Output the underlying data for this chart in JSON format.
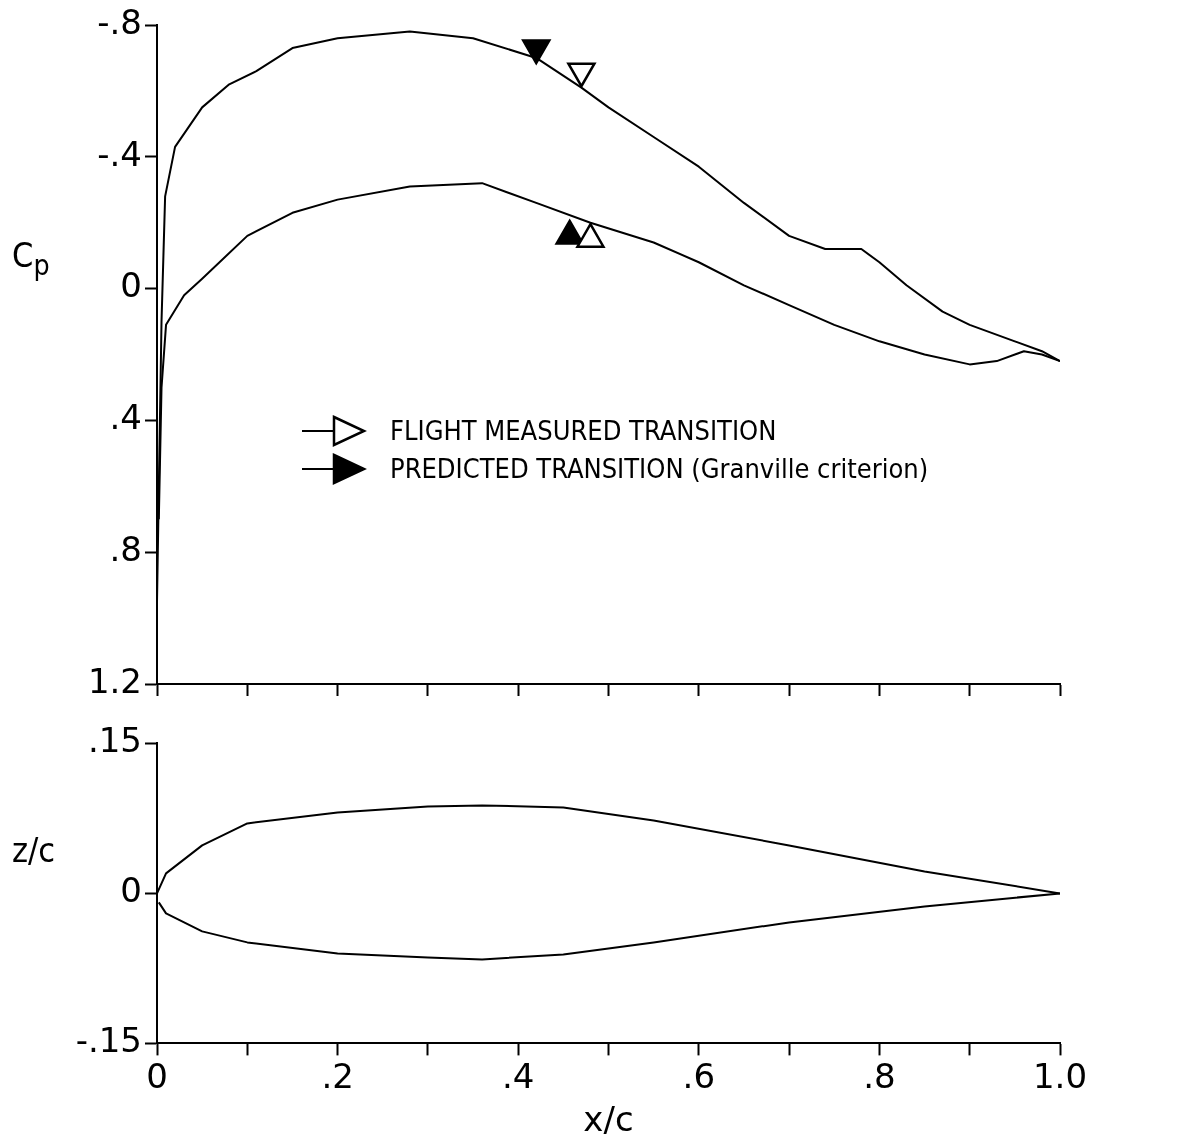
{
  "chart_data": [
    {
      "type": "line",
      "ylabel": "C$_{p}$",
      "xlim": [
        0,
        1
      ],
      "xticks": [
        {
          "value": 0,
          "label": null
        },
        {
          "value": 0.1,
          "label": null
        },
        {
          "value": 0.2,
          "label": null
        },
        {
          "value": 0.3,
          "label": null
        },
        {
          "value": 0.4,
          "label": null
        },
        {
          "value": 0.5,
          "label": null
        },
        {
          "value": 0.6,
          "label": null
        },
        {
          "value": 0.7,
          "label": null
        },
        {
          "value": 0.8,
          "label": null
        },
        {
          "value": 0.9,
          "label": null
        },
        {
          "value": 1,
          "label": null
        }
      ],
      "ylim": [
        1.2,
        -0.8
      ],
      "yticks": [
        {
          "value": -0.8,
          "label": "-.8"
        },
        {
          "value": -0.4,
          "label": "-.4"
        },
        0,
        {
          "value": 0.4,
          "label": ".4"
        },
        {
          "value": 0.8,
          "label": ".8"
        },
        {
          "value": 1.2,
          "label": "1.2"
        }
      ],
      "tick_labels": "y",
      "grid": false,
      "legend": "right",
      "marker": "none",
      "line_style": "solid",
      "series": [
        {
          "color": "#000000",
          "x": [
            0,
            0.005,
            0.009,
            0.02,
            0.05,
            0.08,
            0.11,
            0.15,
            0.2,
            0.28,
            0.35,
            0.42,
            0.47,
            0.5,
            0.55,
            0.6,
            0.65,
            0.7,
            0.74,
            0.78,
            0.8,
            0.83,
            0.87,
            0.9,
            0.95,
            0.98,
            1.0
          ],
          "values": [
            0.95,
            0.1,
            -0.28,
            -0.43,
            -0.55,
            -0.62,
            -0.66,
            -0.73,
            -0.76,
            -0.78,
            -0.76,
            -0.7,
            -0.61,
            -0.55,
            -0.46,
            -0.37,
            -0.26,
            -0.16,
            -0.12,
            -0.12,
            -0.08,
            -0.01,
            0.07,
            0.11,
            0.16,
            0.19,
            0.22
          ]
        },
        {
          "color": "#000000",
          "x": [
            0.002,
            0.005,
            0.01,
            0.03,
            0.05,
            0.1,
            0.15,
            0.2,
            0.28,
            0.36,
            0.42,
            0.48,
            0.55,
            0.6,
            0.65,
            0.7,
            0.75,
            0.8,
            0.85,
            0.9,
            0.93,
            0.96,
            0.98,
            1.0
          ],
          "values": [
            0.7,
            0.3,
            0.11,
            0.02,
            -0.03,
            -0.16,
            -0.23,
            -0.27,
            -0.31,
            -0.32,
            -0.26,
            -0.2,
            -0.14,
            -0.08,
            -0.01,
            0.05,
            0.11,
            0.16,
            0.2,
            0.23,
            0.22,
            0.19,
            0.2,
            0.22
          ]
        },
        {
          "type": "scatter",
          "name": "FLIGHT MEASURED TRANSITION",
          "marker": "triangle",
          "color": "#ffffff",
          "x": [
            0.47,
            0.48
          ],
          "values": [
            -0.66,
            -0.15
          ]
        },
        {
          "type": "scatter",
          "name": "PREDICTED TRANSITION (Granville criterion)",
          "marker": "triangle",
          "color": "#000000",
          "x": [
            0.42,
            0.457
          ],
          "values": [
            -0.73,
            -0.16
          ]
        }
      ]
    },
    {
      "type": "line",
      "xlabel": "x/c",
      "ylabel": "z/c",
      "xlim": [
        0,
        1
      ],
      "xticks": [
        0,
        {
          "value": 0.1,
          "label": null
        },
        {
          "value": 0.2,
          "label": ".2"
        },
        {
          "value": 0.3,
          "label": null
        },
        {
          "value": 0.4,
          "label": ".4"
        },
        {
          "value": 0.5,
          "label": null
        },
        {
          "value": 0.6,
          "label": ".6"
        },
        {
          "value": 0.7,
          "label": null
        },
        {
          "value": 0.8,
          "label": ".8"
        },
        {
          "value": 0.9,
          "label": null
        },
        {
          "value": 1,
          "label": "1.0"
        }
      ],
      "ylim": [
        -0.15,
        0.15
      ],
      "yticks": [
        {
          "value": -0.15,
          "label": "-.15"
        },
        0,
        {
          "value": 0.15,
          "label": ".15"
        }
      ],
      "grid": false,
      "legend": false,
      "marker": "none",
      "line_style": "solid",
      "series": [
        {
          "color": "#000000",
          "x": [
            0,
            0.01,
            0.05,
            0.1,
            0.2,
            0.3,
            0.36,
            0.45,
            0.55,
            0.7,
            0.85,
            1.0
          ],
          "values": [
            0,
            0.02,
            0.048,
            0.07,
            0.081,
            0.087,
            0.088,
            0.086,
            0.073,
            0.048,
            0.022,
            0
          ]
        },
        {
          "color": "#000000",
          "x": [
            0.002,
            0.01,
            0.05,
            0.1,
            0.2,
            0.3,
            0.36,
            0.45,
            0.55,
            0.7,
            0.85,
            1.0
          ],
          "values": [
            -0.009,
            -0.02,
            -0.038,
            -0.049,
            -0.06,
            -0.064,
            -0.066,
            -0.061,
            -0.049,
            -0.029,
            -0.013,
            0
          ]
        }
      ]
    }
  ]
}
